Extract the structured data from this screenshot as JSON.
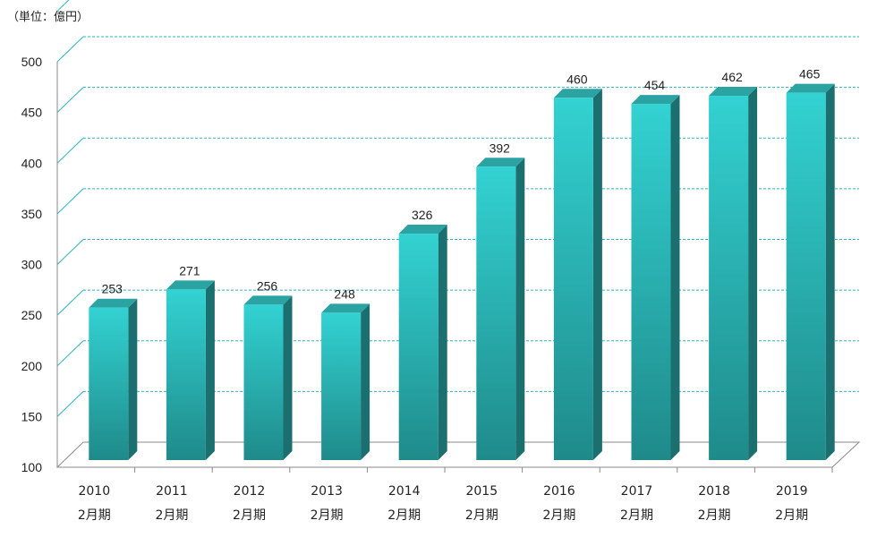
{
  "unit_label": "（単位：億円）",
  "colors": {
    "bar_front_top": "#33d2d2",
    "bar_front_bottom": "#1f8a8a",
    "bar_side": "#1b6f6f",
    "bar_top": "#2ba3a3",
    "gridline": "#2bb5c0",
    "axis": "#8a8a8a"
  },
  "chart_data": {
    "type": "bar",
    "title": "",
    "xlabel": "",
    "ylabel": "",
    "ylim": [
      100,
      500
    ],
    "yticks": [
      100,
      150,
      200,
      250,
      300,
      350,
      400,
      450,
      500
    ],
    "grid": true,
    "categories": [
      {
        "year": "2010",
        "period": "2月期"
      },
      {
        "year": "2011",
        "period": "2月期"
      },
      {
        "year": "2012",
        "period": "2月期"
      },
      {
        "year": "2013",
        "period": "2月期"
      },
      {
        "year": "2014",
        "period": "2月期"
      },
      {
        "year": "2015",
        "period": "2月期"
      },
      {
        "year": "2016",
        "period": "2月期"
      },
      {
        "year": "2017",
        "period": "2月期"
      },
      {
        "year": "2018",
        "period": "2月期"
      },
      {
        "year": "2019",
        "period": "2月期"
      }
    ],
    "values": [
      253,
      271,
      256,
      248,
      326,
      392,
      460,
      454,
      462,
      465
    ]
  }
}
